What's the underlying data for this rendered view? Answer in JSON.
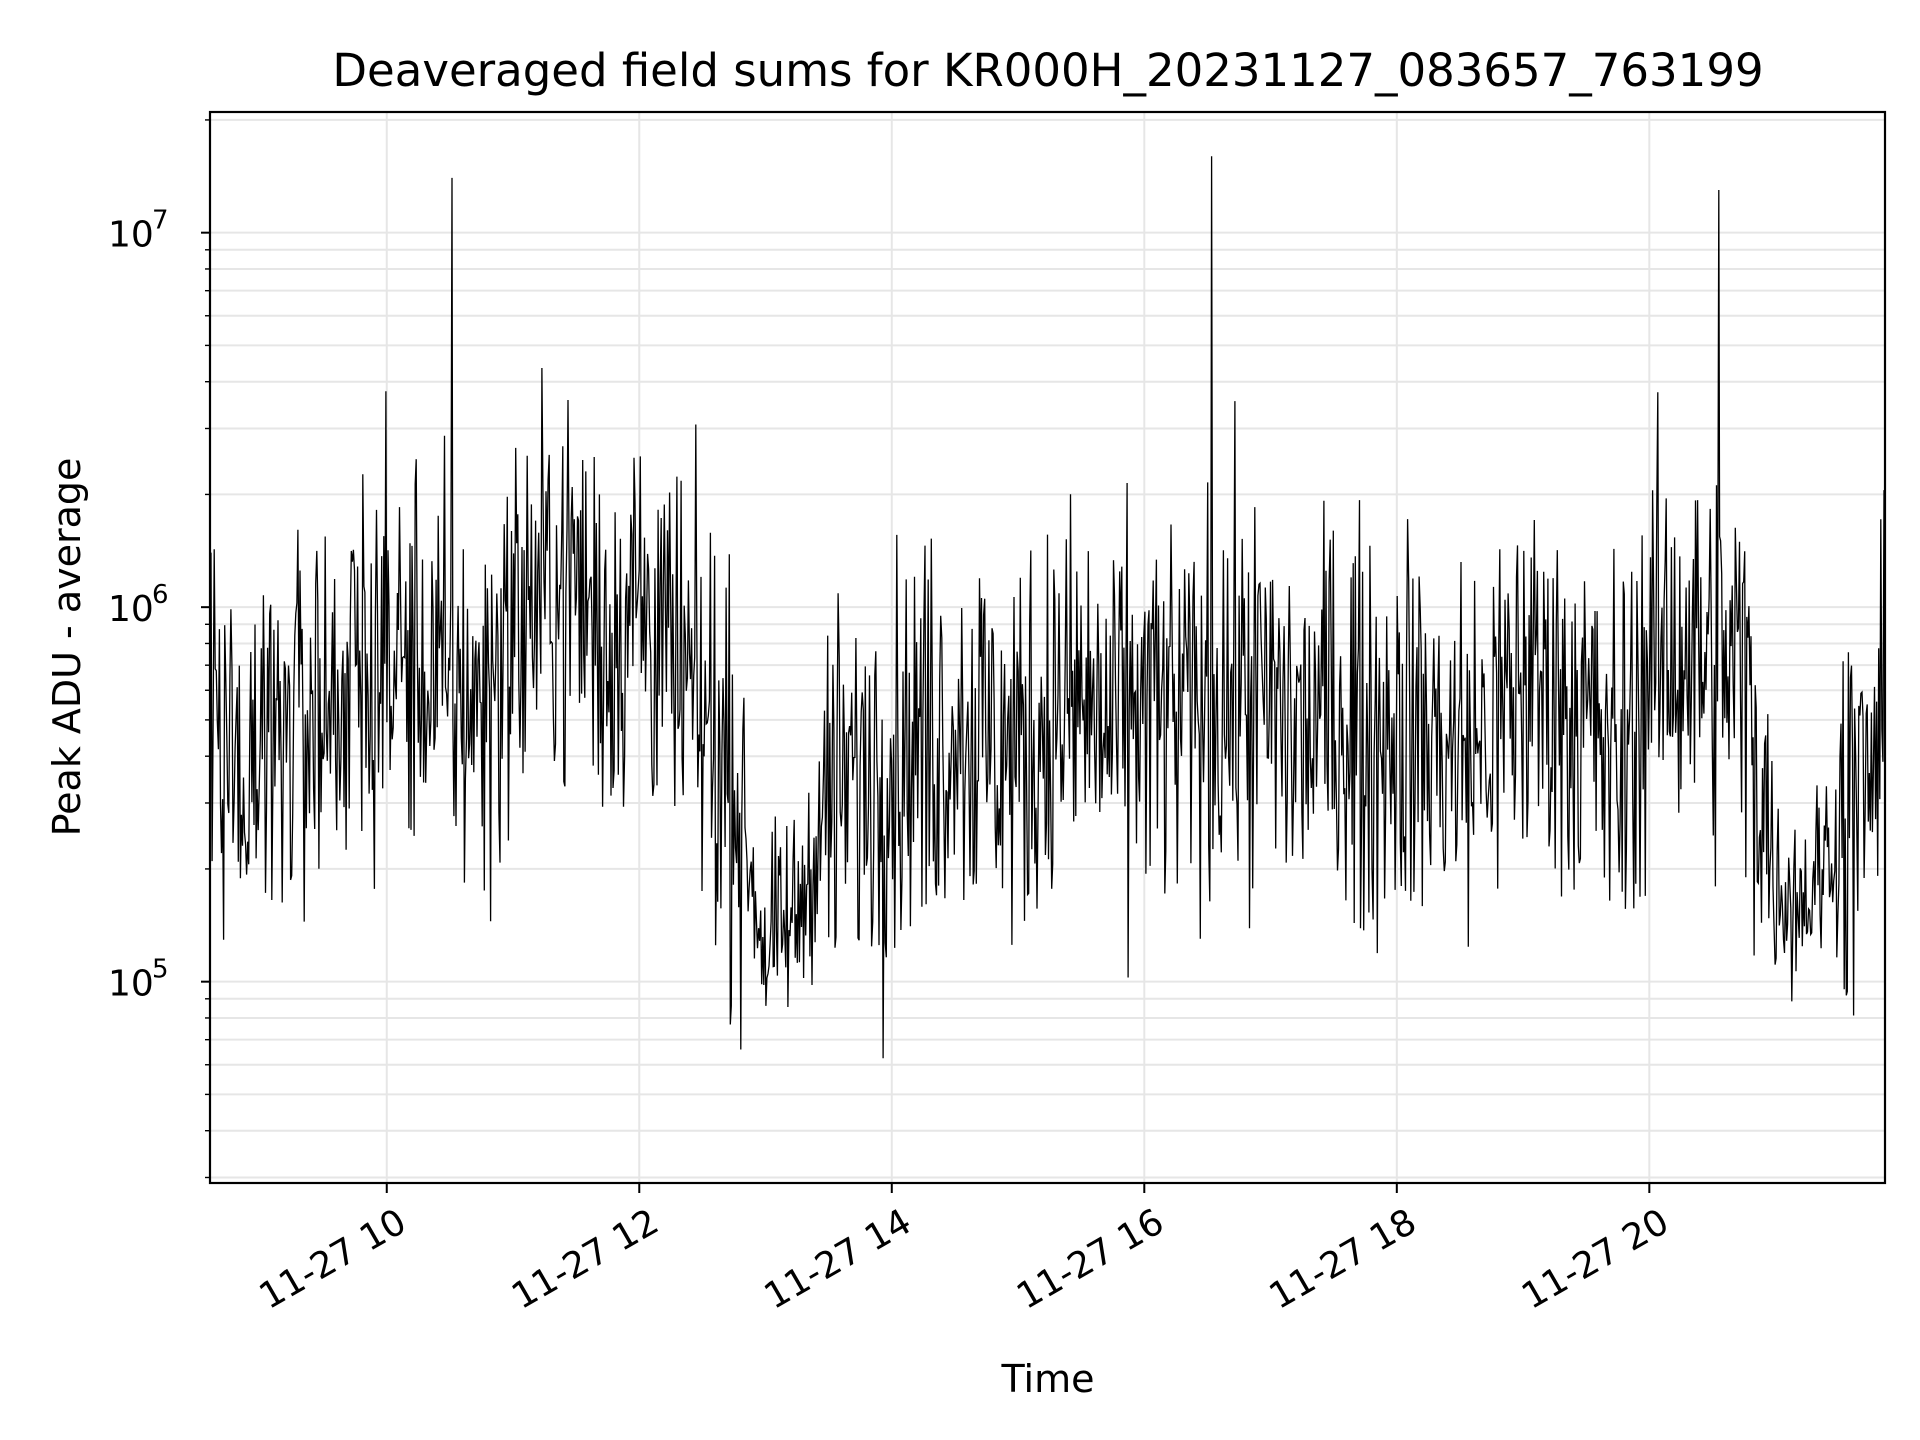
{
  "chart_data": {
    "type": "line",
    "title": "Deaveraged field sums for KR000H_20231127_083657_763199",
    "xlabel": "Time",
    "ylabel": "Peak ADU - average",
    "yscale": "log",
    "ylim": [
      29000,
      21000000
    ],
    "xlim": [
      "2023-11-27 08:36",
      "2023-11-27 21:52"
    ],
    "grid": true,
    "line_color": "#000000",
    "grid_color": "#e6e6e6",
    "x_ticks": [
      {
        "value": "2023-11-27 10:00",
        "label": "11-27 10"
      },
      {
        "value": "2023-11-27 12:00",
        "label": "11-27 12"
      },
      {
        "value": "2023-11-27 14:00",
        "label": "11-27 14"
      },
      {
        "value": "2023-11-27 16:00",
        "label": "11-27 16"
      },
      {
        "value": "2023-11-27 18:00",
        "label": "11-27 18"
      },
      {
        "value": "2023-11-27 20:00",
        "label": "11-27 20"
      }
    ],
    "y_ticks": [
      {
        "value": 100000,
        "base": "10",
        "exp": "5"
      },
      {
        "value": 1000000,
        "base": "10",
        "exp": "6"
      },
      {
        "value": 10000000,
        "base": "10",
        "exp": "7"
      }
    ],
    "series": [
      {
        "x": [
          "2023-11-27 08:36",
          "2023-11-27 08:45",
          "2023-11-27 09:00",
          "2023-11-27 09:15",
          "2023-11-27 09:30",
          "2023-11-27 09:45",
          "2023-11-27 10:00",
          "2023-11-27 10:15",
          "2023-11-27 10:30",
          "2023-11-27 10:31",
          "2023-11-27 10:45",
          "2023-11-27 11:00",
          "2023-11-27 11:15",
          "2023-11-27 11:30",
          "2023-11-27 11:45",
          "2023-11-27 12:00",
          "2023-11-27 12:15",
          "2023-11-27 12:30",
          "2023-11-27 12:45",
          "2023-11-27 13:00",
          "2023-11-27 13:15",
          "2023-11-27 13:30",
          "2023-11-27 13:45",
          "2023-11-27 14:00",
          "2023-11-27 14:15",
          "2023-11-27 14:30",
          "2023-11-27 14:45",
          "2023-11-27 15:00",
          "2023-11-27 15:15",
          "2023-11-27 15:30",
          "2023-11-27 15:45",
          "2023-11-27 16:00",
          "2023-11-27 16:15",
          "2023-11-27 16:32",
          "2023-11-27 16:45",
          "2023-11-27 17:00",
          "2023-11-27 17:15",
          "2023-11-27 17:30",
          "2023-11-27 17:45",
          "2023-11-27 18:00",
          "2023-11-27 18:15",
          "2023-11-27 18:30",
          "2023-11-27 18:45",
          "2023-11-27 19:00",
          "2023-11-27 19:15",
          "2023-11-27 19:30",
          "2023-11-27 19:45",
          "2023-11-27 20:00",
          "2023-11-27 20:15",
          "2023-11-27 20:30",
          "2023-11-27 20:33",
          "2023-11-27 20:45",
          "2023-11-27 21:00",
          "2023-11-27 21:15",
          "2023-11-27 21:30",
          "2023-11-27 21:45",
          "2023-11-27 21:52"
        ],
        "values": [
          600000,
          400000,
          450000,
          500000,
          550000,
          650000,
          750000,
          700000,
          600000,
          14000000,
          550000,
          900000,
          1100000,
          1200000,
          800000,
          1100000,
          700000,
          500000,
          350000,
          120000,
          150000,
          300000,
          350000,
          400000,
          450000,
          500000,
          450000,
          400000,
          500000,
          550000,
          450000,
          550000,
          500000,
          16000000,
          600000,
          550000,
          450000,
          550000,
          450000,
          500000,
          450000,
          400000,
          450000,
          650000,
          600000,
          500000,
          350000,
          700000,
          800000,
          700000,
          13000000,
          700000,
          180000,
          170000,
          250000,
          350000,
          500000
        ]
      }
    ]
  }
}
